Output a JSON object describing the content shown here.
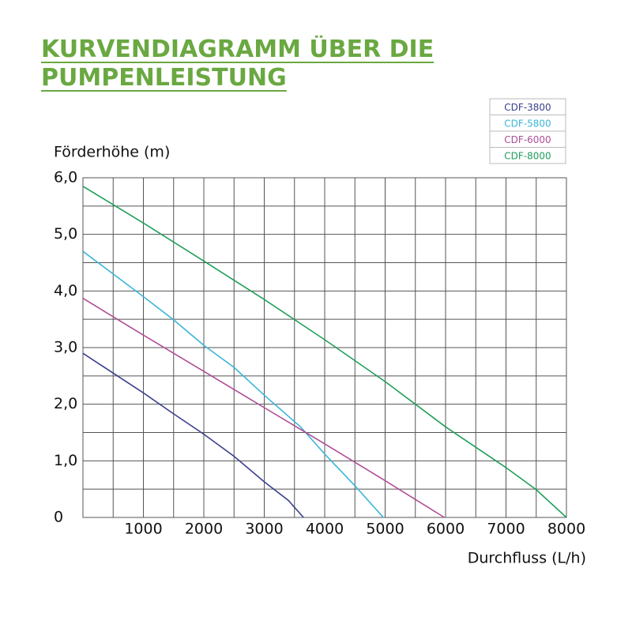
{
  "chart_data": {
    "type": "line",
    "title": "KURVENDIAGRAMM ÜBER DIE PUMPENLEISTUNG",
    "y_label": "Förderhöhe (m)",
    "x_label": "Durchfluss (L/h)",
    "xlim": [
      0,
      8000
    ],
    "ylim": [
      0,
      6
    ],
    "xticks": [
      1000,
      2000,
      3000,
      4000,
      5000,
      6000,
      7000,
      8000
    ],
    "yticks": [
      0,
      {
        "value": 1,
        "label": "1,0"
      },
      {
        "value": 2,
        "label": "2,0"
      },
      {
        "value": 3,
        "label": "3,0"
      },
      {
        "value": 4,
        "label": "4,0"
      },
      {
        "value": 5,
        "label": "5,0"
      },
      {
        "value": 6,
        "label": "6,0"
      }
    ],
    "xminor_ticks": [
      500,
      1500,
      2500,
      3500,
      4500,
      5500,
      6500,
      7500
    ],
    "yminor_ticks": [
      0.5,
      1.5,
      2.5,
      3.5,
      4.5,
      5.5
    ],
    "grid": true,
    "legend": "top-right",
    "series": [
      {
        "name": "CDF-3800",
        "color": "#3b3f8c",
        "x": [
          0,
          500,
          1000,
          1500,
          2000,
          2500,
          3000,
          3400,
          3650
        ],
        "values": [
          2.9,
          2.55,
          2.2,
          1.83,
          1.47,
          1.08,
          0.63,
          0.3,
          0
        ]
      },
      {
        "name": "CDF-5800",
        "color": "#3ab6d9",
        "x": [
          0,
          1000,
          1500,
          2000,
          2500,
          3000,
          3600,
          4000,
          4500,
          4970
        ],
        "values": [
          4.7,
          3.9,
          3.49,
          3.04,
          2.65,
          2.16,
          1.6,
          1.12,
          0.56,
          0
        ]
      },
      {
        "name": "CDF-6000",
        "color": "#b04d97",
        "x": [
          0,
          1000,
          2000,
          3000,
          4000,
          5000,
          5980
        ],
        "values": [
          3.87,
          3.22,
          2.58,
          1.94,
          1.3,
          0.65,
          0
        ]
      },
      {
        "name": "CDF-8000",
        "color": "#1f9e5a",
        "x": [
          0,
          1000,
          2000,
          3000,
          4000,
          5000,
          6000,
          7000,
          7500,
          8000
        ],
        "values": [
          5.85,
          5.2,
          4.53,
          3.85,
          3.14,
          2.4,
          1.6,
          0.88,
          0.49,
          0
        ]
      }
    ]
  }
}
